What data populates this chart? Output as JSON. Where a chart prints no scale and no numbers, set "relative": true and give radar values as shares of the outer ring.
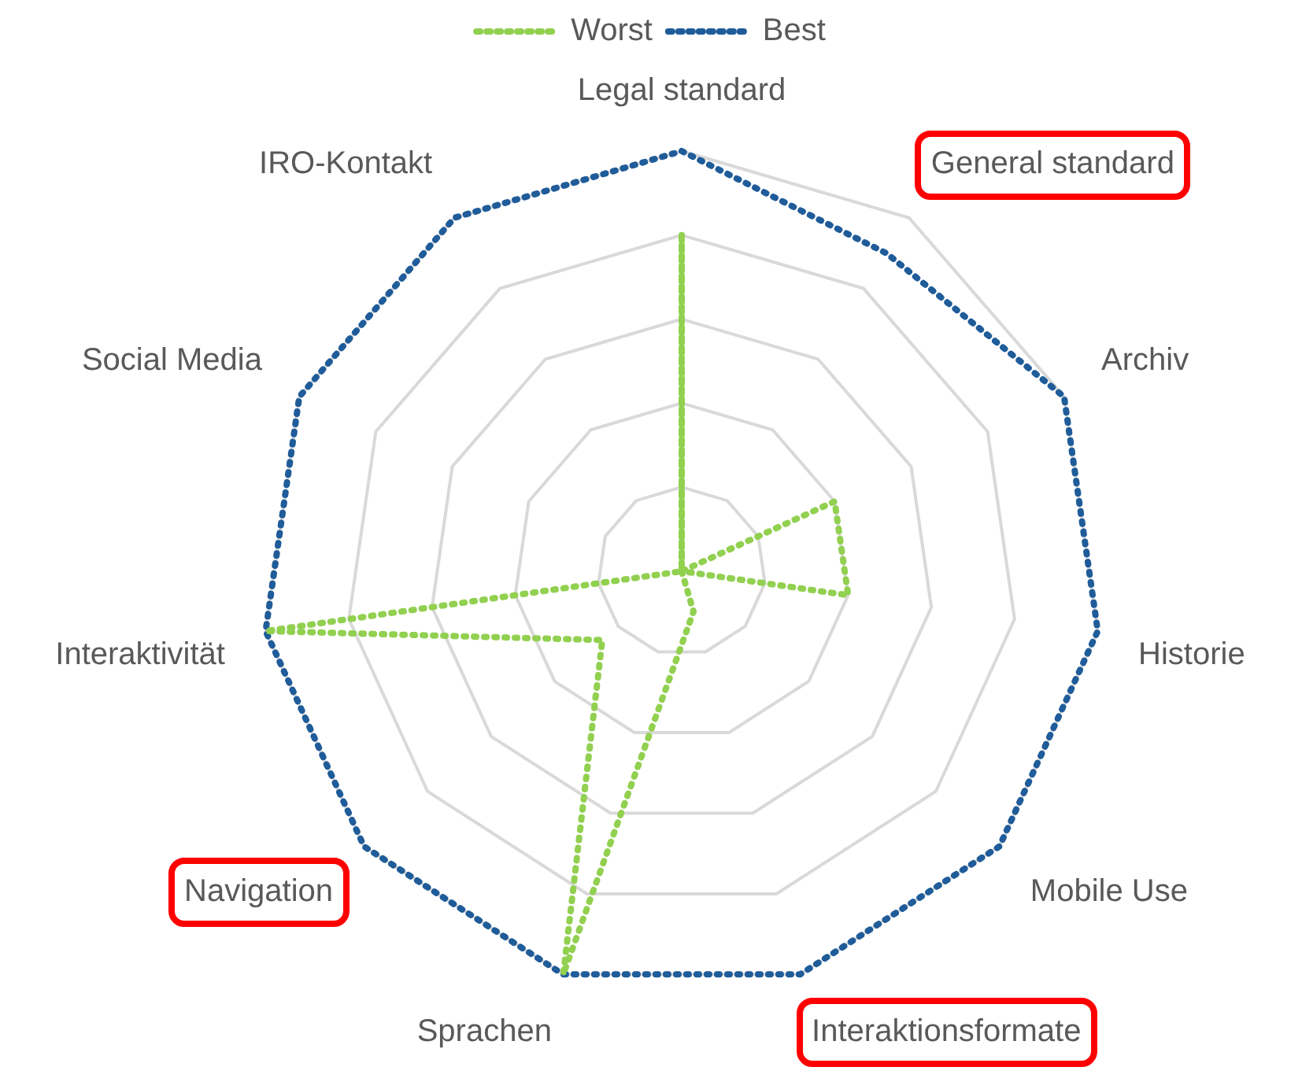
{
  "chart_data": {
    "type": "radar",
    "relative": true,
    "legend": "top",
    "marker": "none",
    "line_style": "dotted",
    "grid": true,
    "categories": [
      "Legal standard",
      "General standard",
      "Archiv",
      "Historie",
      "Mobile Use",
      "Interaktionsformate",
      "Sprachen",
      "Navigation",
      "Interaktivität",
      "Social Media",
      "IRO-Kontakt"
    ],
    "series": [
      {
        "name": "Worst",
        "color": "#92d050",
        "values": [
          0.8,
          0,
          0.4,
          0.4,
          0,
          0.1,
          1,
          0.25,
          1,
          0,
          0
        ]
      },
      {
        "name": "Best",
        "color": "#1f5c99",
        "values": [
          1,
          0.9,
          1,
          1,
          1,
          1,
          1,
          1,
          1,
          1,
          1
        ]
      }
    ]
  }
}
